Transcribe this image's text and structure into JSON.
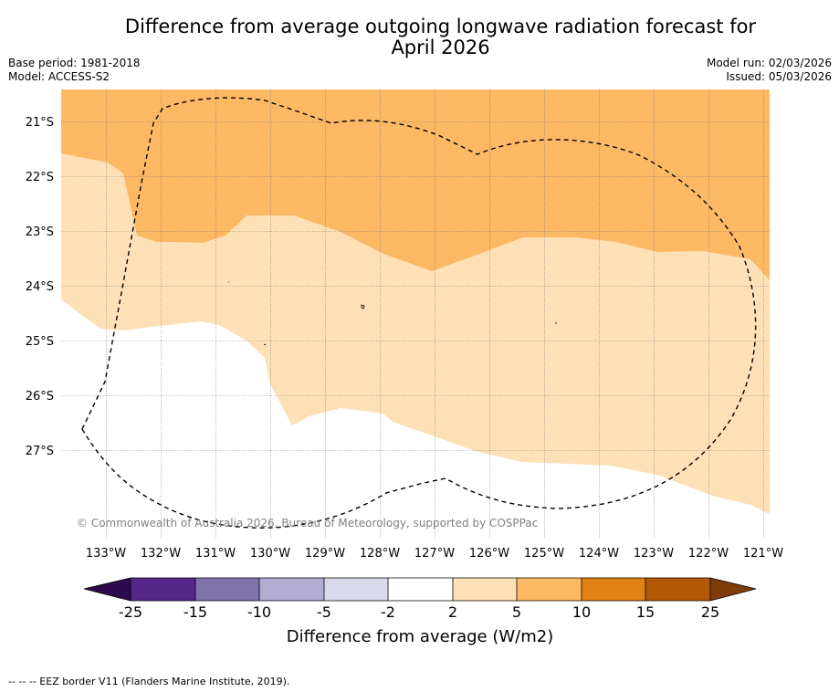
{
  "title_line1": "Difference from average outgoing longwave radiation forecast for",
  "title_line2": "April 2026",
  "base_period": "Base period: 1981-2018",
  "model": "Model: ACCESS-S2",
  "model_run": "Model run: 02/03/2026",
  "issued": "Issued: 05/03/2026",
  "copyright": "© Commonwealth of Australia 2026, Bureau of Meteorology, supported by COSPPac",
  "lat_labels": [
    "21°S",
    "22°S",
    "23°S",
    "24°S",
    "25°S",
    "26°S",
    "27°S"
  ],
  "lon_labels": [
    "133°W",
    "132°W",
    "131°W",
    "130°W",
    "129°W",
    "128°W",
    "127°W",
    "126°W",
    "125°W",
    "124°W",
    "123°W",
    "122°W",
    "121°W"
  ],
  "colorbar": {
    "ticks": [
      "-25",
      "-15",
      "-10",
      "-5",
      "-2",
      "2",
      "5",
      "10",
      "15",
      "25"
    ],
    "colors": [
      "#2d0a4e",
      "#542788",
      "#8073ac",
      "#b2abd2",
      "#d8daeb",
      "#ffffff",
      "#fee0b6",
      "#fdb863",
      "#e08214",
      "#b35806",
      "#7f3b08"
    ],
    "label": "Difference from average (W/m2)"
  },
  "footer": "--  --  -- EEZ border V11 (Flanders Marine Institute, 2019)."
}
